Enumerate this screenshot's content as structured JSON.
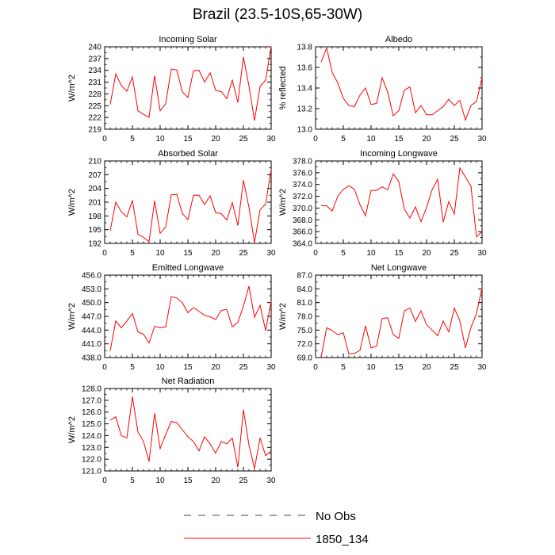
{
  "title": "Brazil (23.5-10S,65-30W)",
  "legend": {
    "obs_label": "No Obs",
    "obs_color": "#3a3a8c",
    "model_label": "1850_134",
    "model_color": "#ff0000"
  },
  "chart_data": [
    {
      "type": "line",
      "title": "Incoming Solar",
      "ylabel": "W/m^2",
      "xlim": [
        0,
        30
      ],
      "xticks": [
        0,
        5,
        10,
        15,
        20,
        25,
        30
      ],
      "xtick_labels": [
        "0",
        "5",
        "10",
        "15",
        "20",
        "25",
        "30"
      ],
      "ylim": [
        219,
        240
      ],
      "yticks": [
        219,
        222,
        225,
        228,
        231,
        234,
        237,
        240
      ],
      "ytick_labels": [
        "219",
        "222",
        "225",
        "228",
        "231",
        "234",
        "237",
        "240"
      ],
      "series": [
        {
          "x": [
            1,
            2,
            3,
            4,
            5,
            6,
            7,
            8,
            9,
            10,
            11,
            12,
            13,
            14,
            15,
            16,
            17,
            18,
            19,
            20,
            21,
            22,
            23,
            24,
            25,
            26,
            27,
            28,
            29,
            30
          ],
          "values": [
            225.3,
            233.1,
            230.1,
            228.7,
            232.3,
            223.7,
            222.8,
            222.0,
            232.6,
            223.7,
            225.5,
            234.3,
            234.1,
            228.5,
            227.1,
            233.9,
            234.0,
            231.0,
            233.4,
            228.9,
            228.6,
            226.8,
            231.5,
            225.8,
            237.4,
            230.0,
            221.2,
            229.9,
            231.5,
            240.1
          ],
          "color": "#ff0000"
        }
      ]
    },
    {
      "type": "line",
      "title": "Albedo",
      "ylabel": "% reflected",
      "xlim": [
        0,
        30
      ],
      "xticks": [
        0,
        5,
        10,
        15,
        20,
        25,
        30
      ],
      "xtick_labels": [
        "0",
        "5",
        "10",
        "15",
        "20",
        "25",
        "30"
      ],
      "ylim": [
        13.0,
        13.8
      ],
      "yticks": [
        13.0,
        13.2,
        13.4,
        13.6,
        13.8
      ],
      "ytick_labels": [
        "13.0",
        "13.2",
        "13.4",
        "13.6",
        "13.8"
      ],
      "series": [
        {
          "x": [
            1,
            2,
            3,
            4,
            5,
            6,
            7,
            8,
            9,
            10,
            11,
            12,
            13,
            14,
            15,
            16,
            17,
            18,
            19,
            20,
            21,
            22,
            23,
            24,
            25,
            26,
            27,
            28,
            29,
            30
          ],
          "values": [
            13.65,
            13.79,
            13.55,
            13.45,
            13.3,
            13.23,
            13.22,
            13.33,
            13.4,
            13.24,
            13.25,
            13.5,
            13.36,
            13.13,
            13.18,
            13.38,
            13.41,
            13.16,
            13.23,
            13.14,
            13.14,
            13.18,
            13.22,
            13.29,
            13.23,
            13.28,
            13.09,
            13.23,
            13.27,
            13.5
          ],
          "color": "#ff0000"
        }
      ]
    },
    {
      "type": "line",
      "title": "Absorbed Solar",
      "ylabel": "W/m^2",
      "xlim": [
        0,
        30
      ],
      "xticks": [
        0,
        5,
        10,
        15,
        20,
        25,
        30
      ],
      "xtick_labels": [
        "0",
        "5",
        "10",
        "15",
        "20",
        "25",
        "30"
      ],
      "ylim": [
        192,
        210
      ],
      "yticks": [
        192,
        195,
        198,
        201,
        204,
        207,
        210
      ],
      "ytick_labels": [
        "192",
        "195",
        "198",
        "201",
        "204",
        "207",
        "210"
      ],
      "series": [
        {
          "x": [
            1,
            2,
            3,
            4,
            5,
            6,
            7,
            8,
            9,
            10,
            11,
            12,
            13,
            14,
            15,
            16,
            17,
            18,
            19,
            20,
            21,
            22,
            23,
            24,
            25,
            26,
            27,
            28,
            29,
            30
          ],
          "values": [
            194.8,
            201.0,
            198.9,
            197.8,
            201.4,
            194.0,
            193.3,
            192.4,
            201.3,
            194.2,
            195.6,
            202.6,
            202.7,
            198.5,
            197.2,
            202.5,
            202.5,
            200.5,
            202.4,
            198.7,
            198.5,
            197.1,
            200.9,
            195.9,
            205.8,
            199.9,
            192.2,
            199.3,
            200.6,
            208.1
          ],
          "color": "#ff0000"
        }
      ]
    },
    {
      "type": "line",
      "title": "Incoming Longwave",
      "ylabel": "W/m^2",
      "xlim": [
        0,
        30
      ],
      "xticks": [
        0,
        5,
        10,
        15,
        20,
        25,
        30
      ],
      "xtick_labels": [
        "0",
        "5",
        "10",
        "15",
        "20",
        "25",
        "30"
      ],
      "ylim": [
        364.0,
        378.0
      ],
      "yticks": [
        364.0,
        366.0,
        368.0,
        370.0,
        372.0,
        374.0,
        376.0,
        378.0
      ],
      "ytick_labels": [
        "364.0",
        "366.0",
        "368.0",
        "370.0",
        "372.0",
        "374.0",
        "376.0",
        "378.0"
      ],
      "series": [
        {
          "x": [
            1,
            2,
            3,
            4,
            5,
            6,
            7,
            8,
            9,
            10,
            11,
            12,
            13,
            14,
            15,
            16,
            17,
            18,
            19,
            20,
            21,
            22,
            23,
            24,
            25,
            26,
            27,
            28,
            29,
            30
          ],
          "values": [
            370.4,
            370.4,
            369.5,
            372.0,
            373.2,
            373.8,
            373.2,
            370.6,
            368.7,
            373.0,
            373.0,
            373.6,
            373.1,
            375.8,
            374.5,
            369.8,
            368.3,
            370.2,
            367.7,
            370.1,
            373.1,
            374.9,
            367.6,
            371.1,
            369.0,
            376.8,
            375.3,
            373.7,
            365.1,
            366.0
          ],
          "color": "#ff0000"
        }
      ]
    },
    {
      "type": "line",
      "title": "Emitted Longwave",
      "ylabel": "W/m^2",
      "xlim": [
        0,
        30
      ],
      "xticks": [
        0,
        5,
        10,
        15,
        20,
        25,
        30
      ],
      "xtick_labels": [
        "0",
        "5",
        "10",
        "15",
        "20",
        "25",
        "30"
      ],
      "ylim": [
        438.0,
        456.0
      ],
      "yticks": [
        438.0,
        441.0,
        444.0,
        447.0,
        450.0,
        453.0,
        456.0
      ],
      "ytick_labels": [
        "438.0",
        "441.0",
        "444.0",
        "447.0",
        "450.0",
        "453.0",
        "456.0"
      ],
      "series": [
        {
          "x": [
            1,
            2,
            3,
            4,
            5,
            6,
            7,
            8,
            9,
            10,
            11,
            12,
            13,
            14,
            15,
            16,
            17,
            18,
            19,
            20,
            21,
            22,
            23,
            24,
            25,
            26,
            27,
            28,
            29,
            30
          ],
          "values": [
            439.5,
            446.0,
            444.5,
            446.0,
            447.6,
            443.6,
            443.1,
            441.2,
            444.8,
            444.5,
            444.7,
            451.3,
            451.0,
            450.0,
            447.8,
            448.9,
            448.1,
            447.2,
            446.9,
            446.3,
            448.3,
            448.5,
            444.7,
            445.7,
            449.2,
            453.6,
            446.8,
            449.4,
            443.9,
            450.3
          ],
          "color": "#ff0000"
        }
      ]
    },
    {
      "type": "line",
      "title": "Net Longwave",
      "ylabel": "W/m^2",
      "xlim": [
        0,
        30
      ],
      "xticks": [
        0,
        5,
        10,
        15,
        20,
        25,
        30
      ],
      "xtick_labels": [
        "0",
        "5",
        "10",
        "15",
        "20",
        "25",
        "30"
      ],
      "ylim": [
        69.0,
        87.0
      ],
      "yticks": [
        69.0,
        72.0,
        75.0,
        78.0,
        81.0,
        84.0,
        87.0
      ],
      "ytick_labels": [
        "69.0",
        "72.0",
        "75.0",
        "78.0",
        "81.0",
        "84.0",
        "87.0"
      ],
      "series": [
        {
          "x": [
            1,
            2,
            3,
            4,
            5,
            6,
            7,
            8,
            9,
            10,
            11,
            12,
            13,
            14,
            15,
            16,
            17,
            18,
            19,
            20,
            21,
            22,
            23,
            24,
            25,
            26,
            27,
            28,
            29,
            30
          ],
          "values": [
            69.1,
            75.5,
            74.9,
            74.0,
            74.4,
            69.8,
            69.9,
            70.6,
            75.9,
            71.1,
            71.5,
            77.5,
            77.7,
            74.0,
            73.2,
            79.2,
            79.8,
            76.9,
            79.2,
            76.2,
            75.0,
            73.8,
            77.0,
            74.6,
            79.8,
            77.0,
            71.1,
            75.6,
            78.6,
            84.3
          ],
          "color": "#ff0000"
        }
      ]
    },
    {
      "type": "line",
      "title": "Net Radiation",
      "ylabel": "W/m^2",
      "xlim": [
        0,
        30
      ],
      "xticks": [
        0,
        5,
        10,
        15,
        20,
        25,
        30
      ],
      "xtick_labels": [
        "0",
        "5",
        "10",
        "15",
        "20",
        "25",
        "30"
      ],
      "ylim": [
        121.0,
        128.0
      ],
      "yticks": [
        121.0,
        122.0,
        123.0,
        124.0,
        125.0,
        126.0,
        127.0,
        128.0
      ],
      "ytick_labels": [
        "121.0",
        "122.0",
        "123.0",
        "124.0",
        "125.0",
        "126.0",
        "127.0",
        "128.0"
      ],
      "series": [
        {
          "x": [
            1,
            2,
            3,
            4,
            5,
            6,
            7,
            8,
            9,
            10,
            11,
            12,
            13,
            14,
            15,
            16,
            17,
            18,
            19,
            20,
            21,
            22,
            23,
            24,
            25,
            26,
            27,
            28,
            29,
            30
          ],
          "values": [
            125.3,
            125.6,
            124.0,
            123.8,
            127.3,
            124.3,
            123.5,
            121.8,
            125.9,
            122.9,
            124.1,
            125.2,
            125.1,
            124.5,
            123.9,
            123.5,
            122.7,
            123.9,
            123.3,
            122.5,
            123.5,
            123.3,
            123.8,
            121.3,
            126.2,
            123.2,
            121.2,
            123.8,
            122.3,
            122.7
          ],
          "color": "#ff0000"
        }
      ]
    }
  ]
}
